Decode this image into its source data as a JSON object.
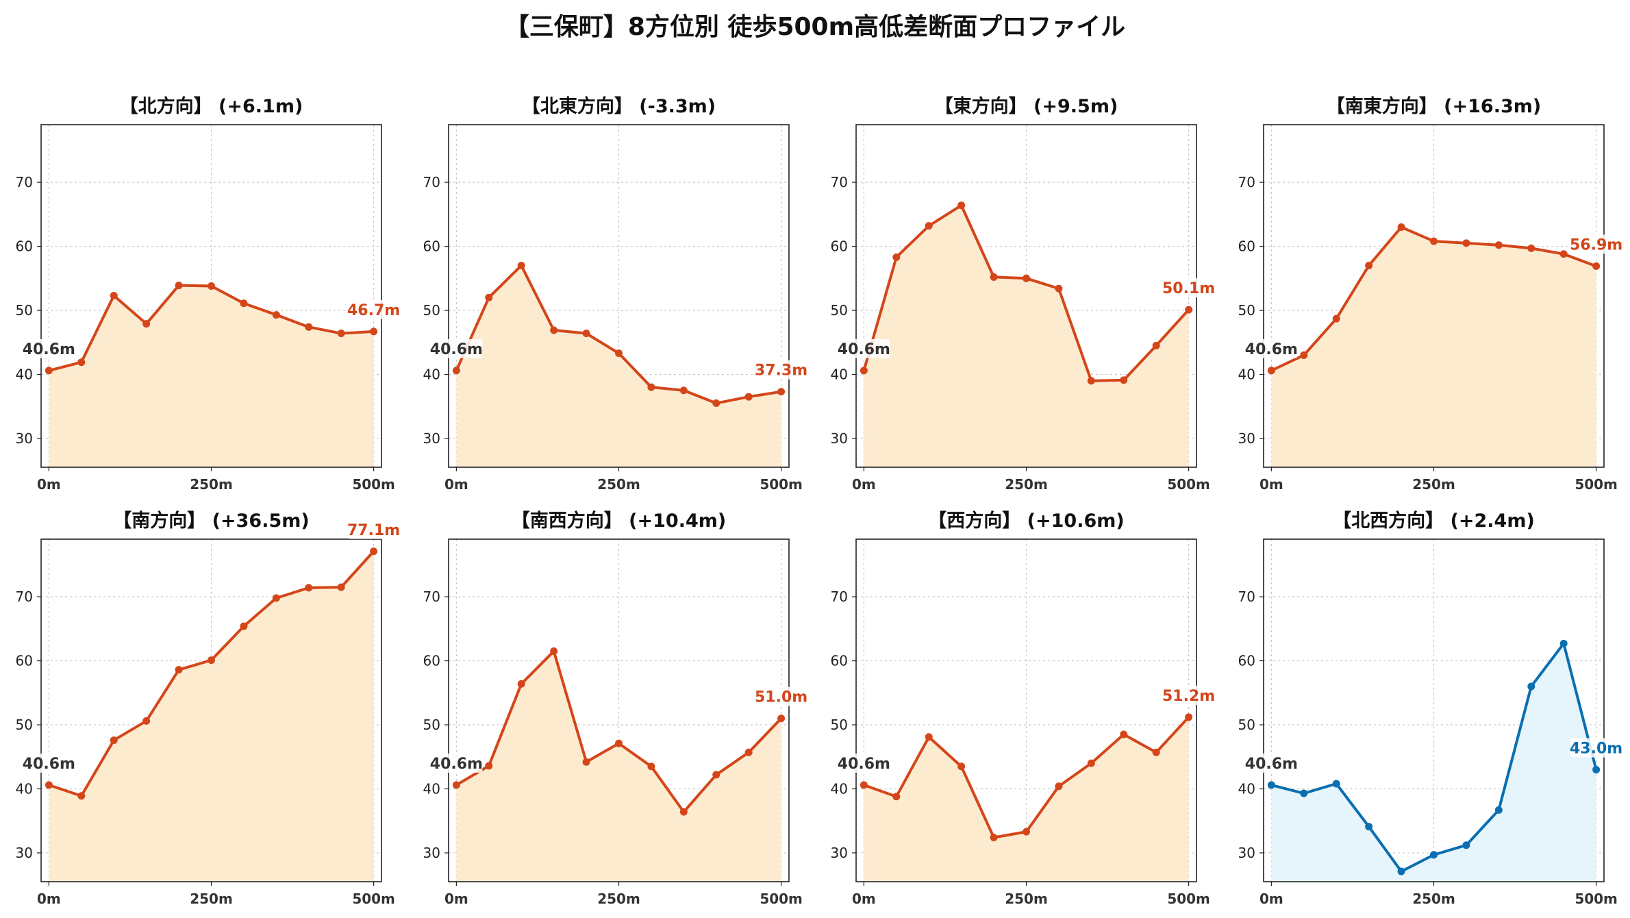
{
  "title": "【三保町】8方位別 徒歩500m高低差断面プロファイル",
  "colors": {
    "up_line": "#d4461a",
    "up_fill": "#fdebd0",
    "down_line": "#0a6fb0",
    "down_fill": "#e6f4fb",
    "start_label": "#333333",
    "grid": "#c8c8c8"
  },
  "chart_data": [
    {
      "type": "area",
      "title": "【北方向】 (+6.1m)",
      "x": [
        0,
        50,
        100,
        150,
        200,
        250,
        300,
        350,
        400,
        450,
        500
      ],
      "values": [
        40.6,
        41.9,
        52.3,
        47.9,
        53.9,
        53.8,
        51.1,
        49.3,
        47.4,
        46.4,
        46.7
      ],
      "start_label": "40.6m",
      "end_label": "46.7m",
      "trend": "up",
      "xticks": [
        "0m",
        "250m",
        "500m"
      ],
      "yticks": [
        "30",
        "40",
        "50",
        "60",
        "70"
      ],
      "ylim": [
        25.5,
        79
      ],
      "xlim": [
        -12,
        512
      ],
      "grid": true
    },
    {
      "type": "area",
      "title": "【北東方向】 (-3.3m)",
      "x": [
        0,
        50,
        100,
        150,
        200,
        250,
        300,
        350,
        400,
        450,
        500
      ],
      "values": [
        40.6,
        52.0,
        57.0,
        46.9,
        46.4,
        43.3,
        38.0,
        37.5,
        35.5,
        36.5,
        37.3
      ],
      "start_label": "40.6m",
      "end_label": "37.3m",
      "trend": "up",
      "xticks": [
        "0m",
        "250m",
        "500m"
      ],
      "yticks": [
        "30",
        "40",
        "50",
        "60",
        "70"
      ],
      "ylim": [
        25.5,
        79
      ],
      "xlim": [
        -12,
        512
      ],
      "grid": true
    },
    {
      "type": "area",
      "title": "【東方向】 (+9.5m)",
      "x": [
        0,
        50,
        100,
        150,
        200,
        250,
        300,
        350,
        400,
        450,
        500
      ],
      "values": [
        40.6,
        58.3,
        63.2,
        66.4,
        55.2,
        55.0,
        53.4,
        39.0,
        39.1,
        44.5,
        50.1
      ],
      "start_label": "40.6m",
      "end_label": "50.1m",
      "trend": "up",
      "xticks": [
        "0m",
        "250m",
        "500m"
      ],
      "yticks": [
        "30",
        "40",
        "50",
        "60",
        "70"
      ],
      "ylim": [
        25.5,
        79
      ],
      "xlim": [
        -12,
        512
      ],
      "grid": true
    },
    {
      "type": "area",
      "title": "【南東方向】 (+16.3m)",
      "x": [
        0,
        50,
        100,
        150,
        200,
        250,
        300,
        350,
        400,
        450,
        500
      ],
      "values": [
        40.6,
        43.0,
        48.7,
        57.0,
        63.0,
        60.8,
        60.5,
        60.2,
        59.7,
        58.8,
        56.9
      ],
      "start_label": "40.6m",
      "end_label": "56.9m",
      "trend": "up",
      "xticks": [
        "0m",
        "250m",
        "500m"
      ],
      "yticks": [
        "30",
        "40",
        "50",
        "60",
        "70"
      ],
      "ylim": [
        25.5,
        79
      ],
      "xlim": [
        -12,
        512
      ],
      "grid": true
    },
    {
      "type": "area",
      "title": "【南方向】 (+36.5m)",
      "x": [
        0,
        50,
        100,
        150,
        200,
        250,
        300,
        350,
        400,
        450,
        500
      ],
      "values": [
        40.6,
        38.9,
        47.6,
        50.6,
        58.6,
        60.1,
        65.4,
        69.8,
        71.4,
        71.5,
        77.1
      ],
      "start_label": "40.6m",
      "end_label": "77.1m",
      "trend": "up",
      "xticks": [
        "0m",
        "250m",
        "500m"
      ],
      "yticks": [
        "30",
        "40",
        "50",
        "60",
        "70"
      ],
      "ylim": [
        25.5,
        79
      ],
      "xlim": [
        -12,
        512
      ],
      "grid": true
    },
    {
      "type": "area",
      "title": "【南西方向】 (+10.4m)",
      "x": [
        0,
        50,
        100,
        150,
        200,
        250,
        300,
        350,
        400,
        450,
        500
      ],
      "values": [
        40.6,
        43.6,
        56.4,
        61.5,
        44.2,
        47.1,
        43.5,
        36.4,
        42.2,
        45.7,
        51.0
      ],
      "start_label": "40.6m",
      "end_label": "51.0m",
      "trend": "up",
      "xticks": [
        "0m",
        "250m",
        "500m"
      ],
      "yticks": [
        "30",
        "40",
        "50",
        "60",
        "70"
      ],
      "ylim": [
        25.5,
        79
      ],
      "xlim": [
        -12,
        512
      ],
      "grid": true
    },
    {
      "type": "area",
      "title": "【西方向】 (+10.6m)",
      "x": [
        0,
        50,
        100,
        150,
        200,
        250,
        300,
        350,
        400,
        450,
        500
      ],
      "values": [
        40.6,
        38.8,
        48.1,
        43.5,
        32.4,
        33.3,
        40.4,
        44.0,
        48.5,
        45.7,
        51.2
      ],
      "start_label": "40.6m",
      "end_label": "51.2m",
      "trend": "up",
      "xticks": [
        "0m",
        "250m",
        "500m"
      ],
      "yticks": [
        "30",
        "40",
        "50",
        "60",
        "70"
      ],
      "ylim": [
        25.5,
        79
      ],
      "xlim": [
        -12,
        512
      ],
      "grid": true
    },
    {
      "type": "area",
      "title": "【北西方向】 (+2.4m)",
      "x": [
        0,
        50,
        100,
        150,
        200,
        250,
        300,
        350,
        400,
        450,
        500
      ],
      "values": [
        40.6,
        39.3,
        40.8,
        34.1,
        27.1,
        29.7,
        31.2,
        36.7,
        56.0,
        62.7,
        43.0
      ],
      "start_label": "40.6m",
      "end_label": "43.0m",
      "trend": "down",
      "xticks": [
        "0m",
        "250m",
        "500m"
      ],
      "yticks": [
        "30",
        "40",
        "50",
        "60",
        "70"
      ],
      "ylim": [
        25.5,
        79
      ],
      "xlim": [
        -12,
        512
      ],
      "grid": true
    }
  ]
}
